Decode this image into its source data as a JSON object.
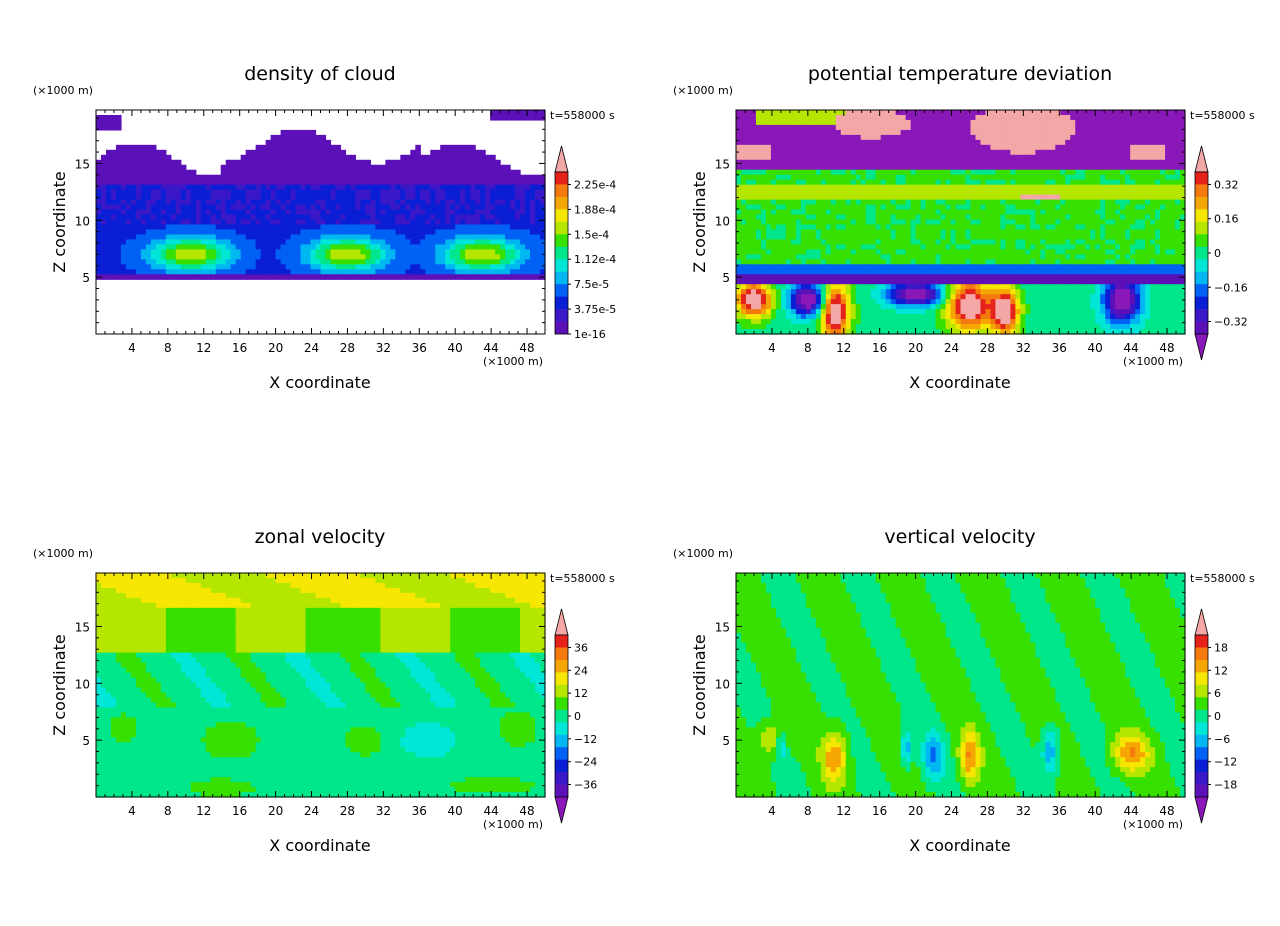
{
  "chart_data": [
    {
      "type": "heatmap",
      "title": "density of cloud",
      "xlabel": "X coordinate",
      "ylabel": "Z coordinate",
      "x_unit": "(×1000 m)",
      "y_unit": "(×1000 m)",
      "time_label": "t=558000 s",
      "xticks": [
        4,
        8,
        12,
        16,
        20,
        24,
        28,
        32,
        36,
        40,
        44,
        48
      ],
      "yticks": [
        5,
        10,
        15
      ],
      "xlim": [
        0,
        50
      ],
      "ylim": [
        0,
        19.7
      ],
      "colorbar_labels": [
        "2.25e-4",
        "1.88e-4",
        "1.5e-4",
        "1.12e-4",
        "7.5e-5",
        "3.75e-5",
        "1e-16"
      ],
      "colorbar_colors": [
        "#f4a7a7",
        "#e5231b",
        "#f47a10",
        "#f6a602",
        "#f6e703",
        "#b5e600",
        "#37e000",
        "#00e68a",
        "#00e6d7",
        "#00b7f1",
        "#0061f5",
        "#0a1fd5",
        "#3a18c8",
        "#5b10b8"
      ],
      "colorbar_min_arrow": false,
      "colorbar_max_arrow": true
    },
    {
      "type": "heatmap",
      "title": "potential temperature deviation",
      "xlabel": "X coordinate",
      "ylabel": "Z coordinate",
      "x_unit": "(×1000 m)",
      "y_unit": "(×1000 m)",
      "time_label": "t=558000 s",
      "xticks": [
        4,
        8,
        12,
        16,
        20,
        24,
        28,
        32,
        36,
        40,
        44,
        48
      ],
      "yticks": [
        5,
        10,
        15
      ],
      "xlim": [
        0,
        50
      ],
      "ylim": [
        0,
        19.7
      ],
      "colorbar_labels": [
        "0.32",
        "0.16",
        "0",
        "−0.16",
        "−0.32"
      ],
      "colorbar_colors": [
        "#f4a7a7",
        "#e5231b",
        "#f47a10",
        "#f6a602",
        "#f6e703",
        "#b5e600",
        "#37e000",
        "#00e68a",
        "#00e6d7",
        "#00b7f1",
        "#0061f5",
        "#0a1fd5",
        "#3a18c8",
        "#5b10b8",
        "#8a18b8"
      ],
      "colorbar_min_arrow": true,
      "colorbar_max_arrow": true
    },
    {
      "type": "heatmap",
      "title": "zonal velocity",
      "xlabel": "X coordinate",
      "ylabel": "Z coordinate",
      "x_unit": "(×1000 m)",
      "y_unit": "(×1000 m)",
      "time_label": "t=558000 s",
      "xticks": [
        4,
        8,
        12,
        16,
        20,
        24,
        28,
        32,
        36,
        40,
        44,
        48
      ],
      "yticks": [
        5,
        10,
        15
      ],
      "xlim": [
        0,
        50
      ],
      "ylim": [
        0,
        19.7
      ],
      "colorbar_labels": [
        "36",
        "24",
        "12",
        "0",
        "−12",
        "−24",
        "−36"
      ],
      "colorbar_colors": [
        "#f4a7a7",
        "#e5231b",
        "#f47a10",
        "#f6a602",
        "#f6e703",
        "#b5e600",
        "#37e000",
        "#00e68a",
        "#00e6d7",
        "#00b7f1",
        "#0061f5",
        "#0a1fd5",
        "#3a18c8",
        "#5b10b8",
        "#8a18b8"
      ],
      "colorbar_min_arrow": true,
      "colorbar_max_arrow": true
    },
    {
      "type": "heatmap",
      "title": "vertical velocity",
      "xlabel": "X coordinate",
      "ylabel": "Z coordinate",
      "x_unit": "(×1000 m)",
      "y_unit": "(×1000 m)",
      "time_label": "t=558000 s",
      "xticks": [
        4,
        8,
        12,
        16,
        20,
        24,
        28,
        32,
        36,
        40,
        44,
        48
      ],
      "yticks": [
        5,
        10,
        15
      ],
      "xlim": [
        0,
        50
      ],
      "ylim": [
        0,
        19.7
      ],
      "colorbar_labels": [
        "18",
        "12",
        "6",
        "0",
        "−6",
        "−12",
        "−18"
      ],
      "colorbar_colors": [
        "#f4a7a7",
        "#e5231b",
        "#f47a10",
        "#f6a602",
        "#f6e703",
        "#b5e600",
        "#37e000",
        "#00e68a",
        "#00e6d7",
        "#00b7f1",
        "#0061f5",
        "#0a1fd5",
        "#3a18c8",
        "#5b10b8",
        "#8a18b8"
      ],
      "colorbar_min_arrow": true,
      "colorbar_max_arrow": true
    }
  ]
}
